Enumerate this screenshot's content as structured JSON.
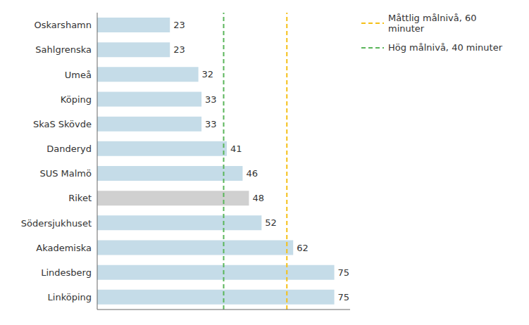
{
  "chart_data": {
    "type": "bar",
    "orientation": "horizontal",
    "categories": [
      "Oskarshamn",
      "Sahlgrenska",
      "Umeå",
      "Köping",
      "SkaS Skövde",
      "Danderyd",
      "SUS Malmö",
      "Riket",
      "Södersjukhuset",
      "Akademiska",
      "Lindesberg",
      "Linköping"
    ],
    "values": [
      23,
      23,
      32,
      33,
      33,
      41,
      46,
      48,
      52,
      62,
      75,
      75
    ],
    "colors": [
      "#c5dce8",
      "#c5dce8",
      "#c5dce8",
      "#c5dce8",
      "#c5dce8",
      "#c5dce8",
      "#c5dce8",
      "#d0d0d0",
      "#c5dce8",
      "#c5dce8",
      "#c5dce8",
      "#c5dce8"
    ],
    "xlim": [
      0,
      80
    ],
    "tick_labels": "y",
    "data_labels": true,
    "grid": false,
    "legend": "upper right",
    "reference_lines": [
      {
        "name": "Måttlig målnivå, 60 minuter",
        "value": 60,
        "color": "#f5c018",
        "line_style": "dashed"
      },
      {
        "name": "Hög målnivå, 40 minuter",
        "value": 40,
        "color": "#5ab55a",
        "line_style": "dashed"
      }
    ]
  }
}
